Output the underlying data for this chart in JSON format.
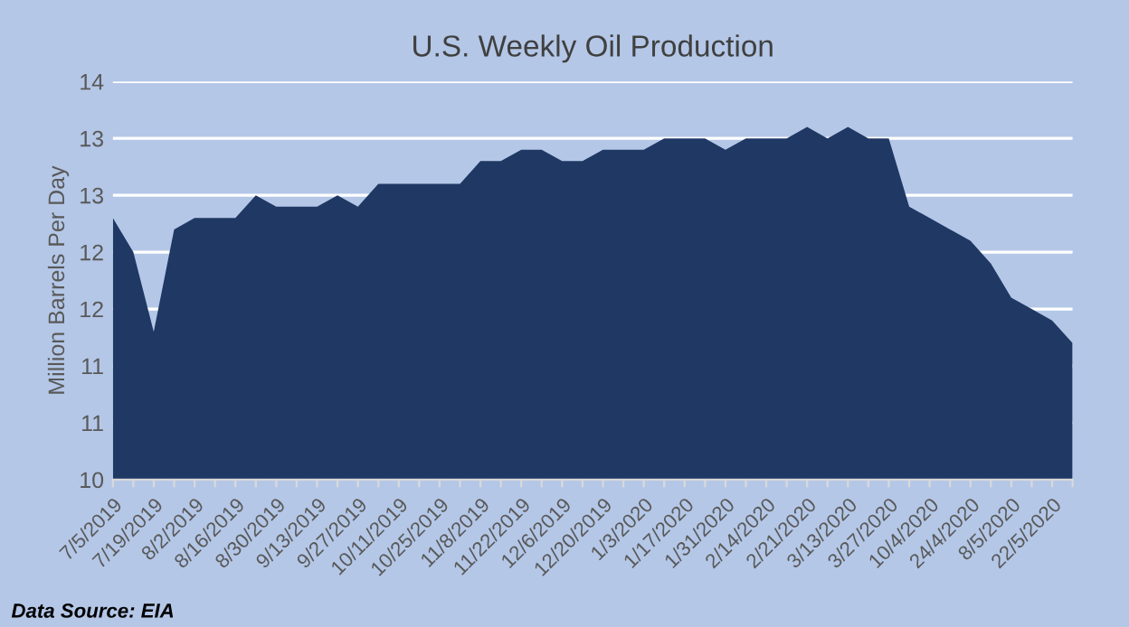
{
  "chart_data": {
    "type": "area",
    "title": "U.S. Weekly Oil Production",
    "ylabel": "Million Barrels Per Day",
    "annotations": [
      "Data Source: EIA"
    ],
    "categories": [
      "7/5/2019",
      null,
      "7/19/2019",
      null,
      "8/2/2019",
      null,
      "8/16/2019",
      null,
      "8/30/2019",
      null,
      "9/13/2019",
      null,
      "9/27/2019",
      null,
      "10/11/2019",
      null,
      "10/25/2019",
      null,
      "11/8/2019",
      null,
      "11/22/2019",
      null,
      "12/6/2019",
      null,
      "12/20/2019",
      null,
      "1/3/2020",
      null,
      "1/17/2020",
      null,
      "1/31/2020",
      null,
      "2/14/2020",
      null,
      "2/21/2020",
      null,
      "3/13/2020",
      null,
      "3/27/2020",
      null,
      "10/4/2020",
      null,
      "24/4/2020",
      null,
      "8/5/2020",
      null,
      "22/5/2020",
      null
    ],
    "series": [
      {
        "color": "#1f3864",
        "values": [
          12.3,
          12.0,
          11.3,
          12.2,
          12.3,
          12.3,
          12.3,
          12.5,
          12.4,
          12.4,
          12.4,
          12.5,
          12.4,
          12.6,
          12.6,
          12.6,
          12.6,
          12.6,
          12.8,
          12.8,
          12.9,
          12.9,
          12.8,
          12.8,
          12.9,
          12.9,
          12.9,
          13.0,
          13.0,
          13.0,
          12.9,
          13.0,
          13.0,
          13.0,
          13.1,
          13.0,
          13.1,
          13.0,
          13.0,
          12.4,
          12.3,
          12.2,
          12.1,
          11.9,
          11.6,
          11.5,
          11.4,
          11.2
        ]
      }
    ],
    "ylim": [
      10,
      13.5
    ],
    "yticks": [
      10,
      {
        "value": 10.5,
        "label": "11"
      },
      11,
      {
        "value": 11.5,
        "label": "12"
      },
      12,
      {
        "value": 12.5,
        "label": "13"
      },
      13,
      {
        "value": 13.5,
        "label": "14"
      }
    ],
    "grid": "y"
  }
}
